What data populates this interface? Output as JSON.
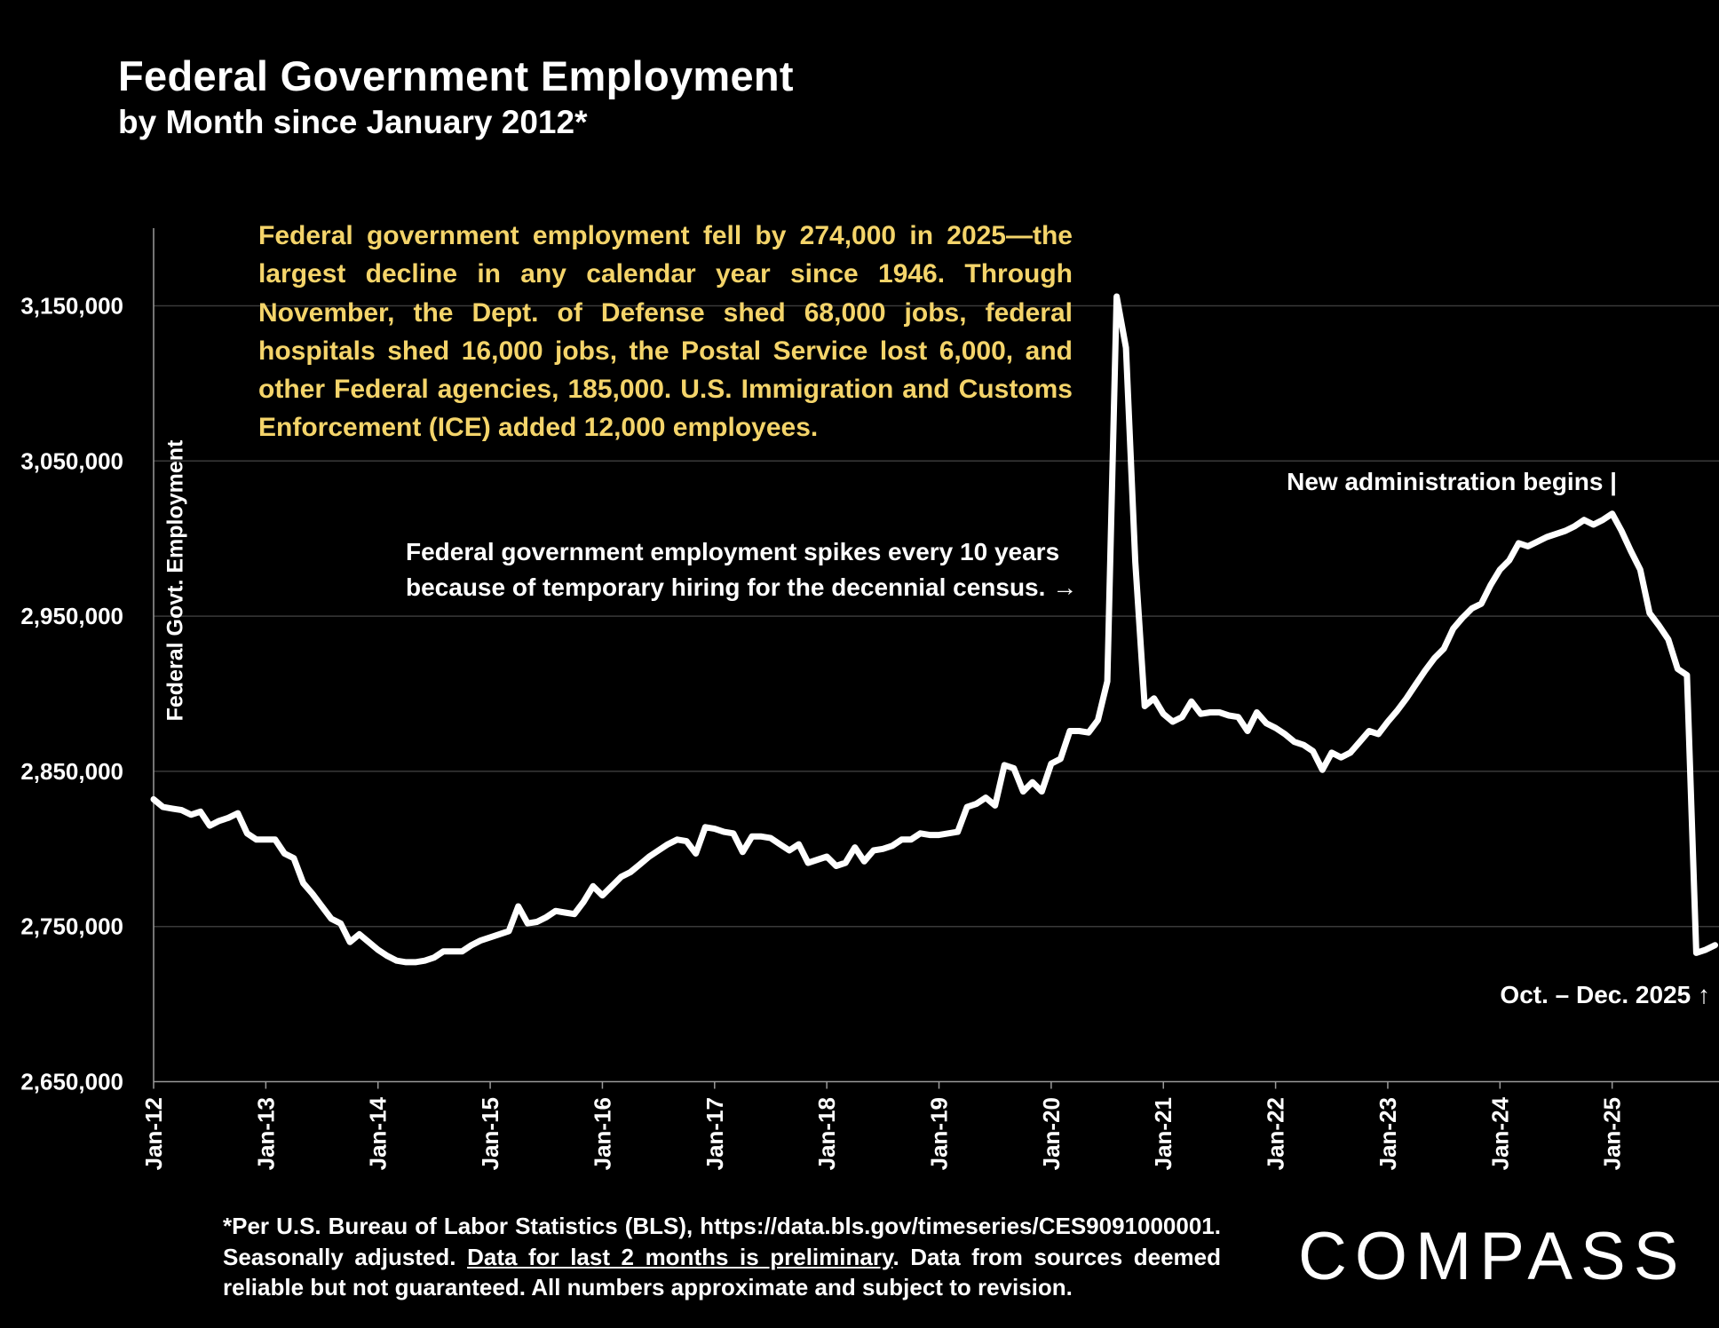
{
  "header": {
    "title": "Federal Government Employment",
    "subtitle": "by Month since January 2012*"
  },
  "callout_text": "Federal government employment fell by 274,000 in 2025—the largest decline in any calendar year since 1946. Through November, the Dept. of Defense shed 68,000 jobs, federal hospitals shed 16,000 jobs, the Postal Service lost 6,000, and other Federal agencies, 185,000. U.S. Immigration and Customs Enforcement (ICE) added 12,000 employees.",
  "annotations": {
    "census_line1": "Federal government employment spikes every 10 years",
    "census_line2": "because of temporary hiring for the decennial census. →",
    "new_admin": "New administration begins |",
    "oct_dec": "Oct. – Dec. 2025 ↑"
  },
  "footer": {
    "part1": "*Per U.S. Bureau of Labor Statistics (BLS), https://data.bls.gov/timeseries/CES9091000001. Seasonally adjusted. ",
    "underlined": "Data for last 2 months is preliminary",
    "part2": ". Data from sources deemed reliable but not guaranteed. All numbers approximate and subject to revision."
  },
  "logo": "COMPASS",
  "colors": {
    "background": "#000000",
    "line": "#ffffff",
    "callout": "#f4d46a",
    "grid": "#3a3a3a"
  },
  "chart_data": {
    "type": "line",
    "title": "Federal Government Employment",
    "subtitle": "by Month since January 2012*",
    "ylabel": "Federal Govt. Employment",
    "xlabel": "",
    "ylim": [
      2650000,
      3200000
    ],
    "yticks": [
      "2,650,000",
      "2,750,000",
      "2,850,000",
      "2,950,000",
      "3,050,000",
      "3,150,000"
    ],
    "ytick_values": [
      2650000,
      2750000,
      2850000,
      2950000,
      3050000,
      3150000
    ],
    "xticks": [
      "Jan-12",
      "Jan-13",
      "Jan-14",
      "Jan-15",
      "Jan-16",
      "Jan-17",
      "Jan-18",
      "Jan-19",
      "Jan-20",
      "Jan-21",
      "Jan-22",
      "Jan-23",
      "Jan-24",
      "Jan-25"
    ],
    "x_start": "Jan-12",
    "x_end": "Dec-25",
    "grid": "horizontal",
    "legend": "none",
    "series": [
      {
        "values": [
          2832000,
          2827000,
          2826000,
          2825000,
          2822000,
          2824000,
          2815000,
          2818000,
          2820000,
          2823000,
          2810000,
          2806000,
          2806000,
          2806000,
          2797000,
          2794000,
          2778000,
          2771000,
          2763000,
          2755000,
          2752000,
          2740000,
          2745000,
          2740000,
          2735000,
          2731000,
          2728000,
          2727000,
          2727000,
          2728000,
          2730000,
          2734000,
          2734000,
          2734000,
          2738000,
          2741000,
          2743000,
          2745000,
          2747000,
          2763000,
          2752000,
          2753000,
          2756000,
          2760000,
          2759000,
          2758000,
          2766000,
          2776000,
          2770000,
          2776000,
          2782000,
          2785000,
          2790000,
          2795000,
          2799000,
          2803000,
          2806000,
          2805000,
          2797000,
          2814000,
          2813000,
          2811000,
          2810000,
          2798000,
          2808000,
          2808000,
          2807000,
          2803000,
          2799000,
          2803000,
          2791000,
          2793000,
          2795000,
          2789000,
          2791000,
          2801000,
          2792000,
          2799000,
          2800000,
          2802000,
          2806000,
          2806000,
          2810000,
          2809000,
          2809000,
          2810000,
          2811000,
          2827000,
          2829000,
          2833000,
          2828000,
          2854000,
          2852000,
          2837000,
          2843000,
          2837000,
          2855000,
          2858000,
          2876000,
          2876000,
          2875000,
          2883000,
          2908000,
          3156000,
          3123000,
          2985000,
          2892000,
          2897000,
          2887000,
          2882000,
          2885000,
          2895000,
          2887000,
          2888000,
          2888000,
          2886000,
          2885000,
          2876000,
          2888000,
          2881000,
          2878000,
          2874000,
          2869000,
          2867000,
          2863000,
          2851000,
          2862000,
          2859000,
          2862000,
          2869000,
          2876000,
          2874000,
          2882000,
          2889000,
          2897000,
          2906000,
          2915000,
          2923000,
          2929000,
          2942000,
          2949000,
          2955000,
          2958000,
          2970000,
          2980000,
          2986000,
          2997000,
          2995000,
          2998000,
          3001000,
          3003000,
          3005000,
          3008000,
          3012000,
          3009000,
          3012000,
          3016000,
          3005000,
          2992000,
          2980000,
          2952000,
          2944000,
          2935000,
          2916000,
          2912000,
          2733000,
          2735000,
          2738000
        ]
      }
    ]
  }
}
